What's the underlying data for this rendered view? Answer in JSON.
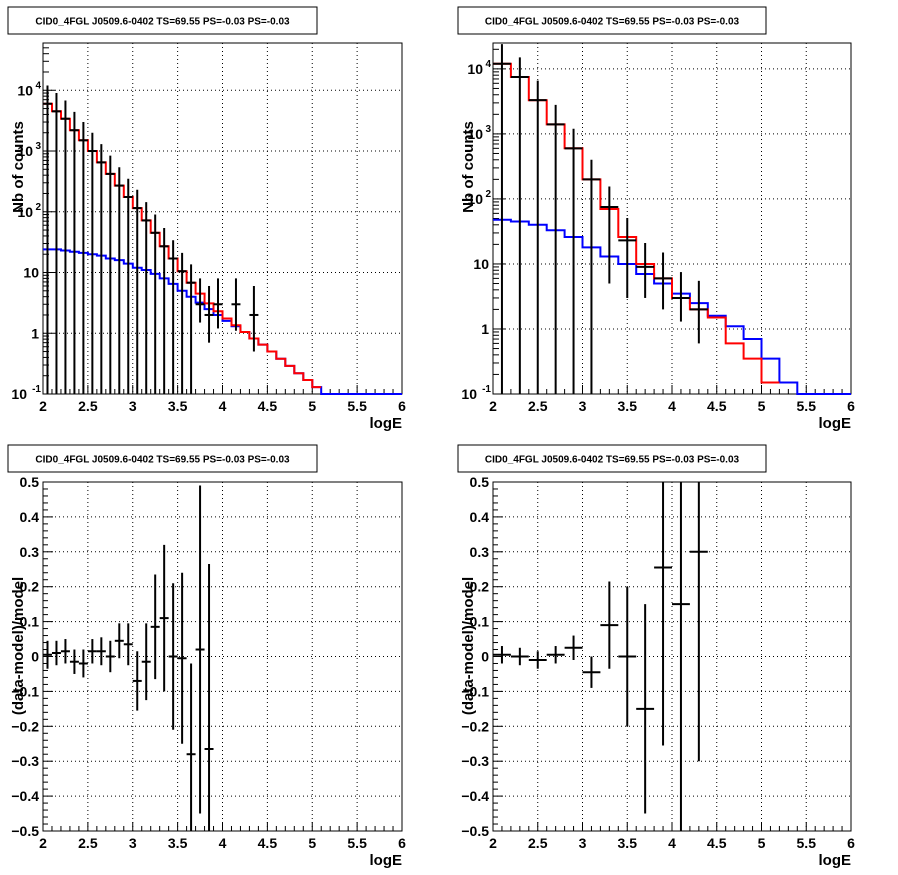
{
  "chart_data": [
    {
      "type": "histogram-line",
      "title": "CID0_4FGL J0509.6-0402 TS=69.55 PS=-0.03 PS=-0.03",
      "xlabel": "logE",
      "ylabel": "Nb of counts",
      "xlim": [
        2,
        6
      ],
      "ylim": [
        0.1,
        60000
      ],
      "yscale": "log",
      "grid": true,
      "xticks": [
        "2",
        "2.5",
        "3",
        "3.5",
        "4",
        "4.5",
        "5",
        "5.5",
        "6"
      ],
      "yticks": [
        {
          "base": "10",
          "exp": "-1"
        },
        {
          "base": "1",
          "exp": ""
        },
        {
          "base": "10",
          "exp": ""
        },
        {
          "base": "10",
          "exp": "2"
        },
        {
          "base": "10",
          "exp": "3"
        },
        {
          "base": "10",
          "exp": "4"
        }
      ],
      "series": [
        {
          "color": "#0000ff",
          "bin_width": 0.1,
          "x": [
            2.0,
            2.1,
            2.2,
            2.3,
            2.4,
            2.5,
            2.6,
            2.7,
            2.8,
            2.9,
            3.0,
            3.1,
            3.2,
            3.3,
            3.4,
            3.5,
            3.6,
            3.7,
            3.8,
            3.9,
            4.0,
            4.1,
            4.2,
            4.3,
            4.4,
            4.5,
            4.6,
            4.7,
            4.8,
            4.9,
            5.0,
            5.1,
            5.2,
            5.3,
            5.4,
            5.5,
            5.6,
            5.7,
            5.8,
            5.9
          ],
          "values": [
            24,
            24,
            23,
            22,
            21,
            20,
            19,
            17,
            16,
            14,
            12,
            11,
            9.5,
            8,
            6.5,
            5,
            4,
            3.2,
            2.5,
            2,
            1.6,
            1.3,
            1.05,
            0.82,
            0.65,
            0.5,
            0.38,
            0.29,
            0.22,
            0.17,
            0.13,
            0.1,
            0.1,
            0.1,
            0.1,
            0.1,
            0.1,
            0.1,
            0.1,
            0.1
          ]
        },
        {
          "color": "#ff0000",
          "bin_width": 0.1,
          "x": [
            2.0,
            2.1,
            2.2,
            2.3,
            2.4,
            2.5,
            2.6,
            2.7,
            2.8,
            2.9,
            3.0,
            3.1,
            3.2,
            3.3,
            3.4,
            3.5,
            3.6,
            3.7,
            3.8,
            3.9,
            4.0,
            4.1,
            4.2,
            4.3,
            4.4,
            4.5,
            4.6,
            4.7,
            4.8,
            4.9,
            5.0
          ],
          "values": [
            6000,
            4500,
            3400,
            2200,
            1500,
            1000,
            650,
            420,
            270,
            175,
            115,
            72,
            45,
            27,
            17,
            10.5,
            6.8,
            4.5,
            3.1,
            2.3,
            1.75,
            1.35,
            1.05,
            0.82,
            0.65,
            0.5,
            0.38,
            0.29,
            0.22,
            0.17,
            0.13
          ]
        }
      ],
      "points": {
        "color": "#000000",
        "x": [
          2.05,
          2.15,
          2.25,
          2.35,
          2.45,
          2.55,
          2.65,
          2.75,
          2.85,
          2.95,
          3.05,
          3.15,
          3.25,
          3.35,
          3.45,
          3.55,
          3.65,
          3.75,
          3.85,
          3.95,
          4.15,
          4.35
        ],
        "y": [
          6000,
          4500,
          3400,
          2200,
          1500,
          1000,
          650,
          420,
          270,
          175,
          115,
          72,
          45,
          27,
          17,
          10.5,
          6.8,
          3,
          2,
          3,
          3,
          2
        ],
        "yerr_low": [
          6000,
          4500,
          3400,
          2200,
          1500,
          1000,
          650,
          420,
          270,
          175,
          115,
          72,
          45,
          27,
          17,
          10.5,
          6.8,
          1.5,
          1.3,
          1.8,
          1.9,
          1.5
        ],
        "yerr_high": [
          6000,
          4500,
          3400,
          2200,
          1500,
          1000,
          650,
          420,
          270,
          175,
          115,
          72,
          45,
          27,
          17,
          10.5,
          6.8,
          5,
          4,
          5,
          5,
          4
        ],
        "xerr": 0.05
      }
    },
    {
      "type": "histogram-line",
      "title": "CID0_4FGL J0509.6-0402 TS=69.55 PS=-0.03 PS=-0.03",
      "xlabel": "logE",
      "ylabel": "Nb of counts",
      "xlim": [
        2,
        6
      ],
      "ylim": [
        0.1,
        25000
      ],
      "yscale": "log",
      "grid": true,
      "xticks": [
        "2",
        "2.5",
        "3",
        "3.5",
        "4",
        "4.5",
        "5",
        "5.5",
        "6"
      ],
      "yticks": [
        {
          "base": "10",
          "exp": "-1"
        },
        {
          "base": "1",
          "exp": ""
        },
        {
          "base": "10",
          "exp": ""
        },
        {
          "base": "10",
          "exp": "2"
        },
        {
          "base": "10",
          "exp": "3"
        },
        {
          "base": "10",
          "exp": "4"
        }
      ],
      "series": [
        {
          "color": "#0000ff",
          "bin_width": 0.2,
          "x": [
            2.0,
            2.2,
            2.4,
            2.6,
            2.8,
            3.0,
            3.2,
            3.4,
            3.6,
            3.8,
            4.0,
            4.2,
            4.4,
            4.6,
            4.8,
            5.0,
            5.2,
            5.4,
            5.6,
            5.8
          ],
          "values": [
            48,
            45,
            40,
            33,
            26,
            18,
            13,
            10,
            7,
            5,
            3.5,
            2.5,
            1.6,
            1.1,
            0.7,
            0.35,
            0.15,
            0.1,
            0.1,
            0.1
          ]
        },
        {
          "color": "#ff0000",
          "bin_width": 0.2,
          "x": [
            2.0,
            2.2,
            2.4,
            2.6,
            2.8,
            3.0,
            3.2,
            3.4,
            3.6,
            3.8,
            4.0,
            4.2,
            4.4,
            4.6,
            4.8,
            5.0
          ],
          "values": [
            12000,
            7500,
            3300,
            1400,
            600,
            200,
            70,
            26,
            10,
            6,
            3,
            2,
            1.5,
            0.6,
            0.35,
            0.15
          ]
        }
      ],
      "points": {
        "color": "#000000",
        "x": [
          2.1,
          2.3,
          2.5,
          2.7,
          2.9,
          3.1,
          3.3,
          3.5,
          3.7,
          3.9,
          4.1,
          4.3
        ],
        "y": [
          12000,
          7500,
          3300,
          1400,
          600,
          200,
          75,
          23,
          9,
          6,
          3,
          2
        ],
        "yerr_low": [
          12000,
          7500,
          3300,
          1400,
          600,
          200,
          70,
          20,
          6,
          4,
          1.7,
          1.4
        ],
        "yerr_high": [
          12000,
          7500,
          3300,
          1400,
          600,
          200,
          80,
          28,
          12,
          9,
          4.5,
          3.5
        ],
        "xerr": 0.1
      }
    },
    {
      "type": "scatter-errorbar",
      "title": "CID0_4FGL J0509.6-0402 TS=69.55 PS=-0.03 PS=-0.03",
      "xlabel": "logE",
      "ylabel": "(data-model)/model",
      "xlim": [
        2,
        6
      ],
      "ylim": [
        -0.5,
        0.5
      ],
      "grid": true,
      "xticks": [
        "2",
        "2.5",
        "3",
        "3.5",
        "4",
        "4.5",
        "5",
        "5.5",
        "6"
      ],
      "yticks": [
        "−0.5",
        "−0.4",
        "−0.3",
        "−0.2",
        "−0.1",
        "0",
        "0.1",
        "0.2",
        "0.3",
        "0.4",
        "0.5"
      ],
      "points": {
        "color": "#000000",
        "x": [
          2.05,
          2.15,
          2.25,
          2.35,
          2.45,
          2.55,
          2.65,
          2.75,
          2.85,
          2.95,
          3.05,
          3.15,
          3.25,
          3.35,
          3.45,
          3.55,
          3.65,
          3.75,
          3.85
        ],
        "y": [
          0.005,
          0.01,
          0.015,
          -0.015,
          -0.02,
          0.015,
          0.015,
          0.0,
          0.045,
          0.035,
          -0.07,
          -0.015,
          0.085,
          0.11,
          0.0,
          -0.005,
          -0.28,
          0.02,
          -0.265
        ],
        "yerr": [
          0.04,
          0.035,
          0.035,
          0.035,
          0.04,
          0.035,
          0.04,
          0.045,
          0.05,
          0.06,
          0.085,
          0.11,
          0.15,
          0.21,
          0.21,
          0.245,
          0.26,
          0.47,
          0.53
        ],
        "xerr": 0.05
      }
    },
    {
      "type": "scatter-errorbar",
      "title": "CID0_4FGL J0509.6-0402 TS=69.55 PS=-0.03 PS=-0.03",
      "xlabel": "logE",
      "ylabel": "(data-model)/model",
      "xlim": [
        2,
        6
      ],
      "ylim": [
        -0.5,
        0.5
      ],
      "grid": true,
      "xticks": [
        "2",
        "2.5",
        "3",
        "3.5",
        "4",
        "4.5",
        "5",
        "5.5",
        "6"
      ],
      "yticks": [
        "−0.5",
        "−0.4",
        "−0.3",
        "−0.2",
        "−0.1",
        "0",
        "0.1",
        "0.2",
        "0.3",
        "0.4",
        "0.5"
      ],
      "points": {
        "color": "#000000",
        "x": [
          2.1,
          2.3,
          2.5,
          2.7,
          2.9,
          3.1,
          3.3,
          3.5,
          3.7,
          3.9,
          4.1,
          4.3
        ],
        "y": [
          0.005,
          0.0,
          -0.01,
          0.005,
          0.025,
          -0.045,
          0.09,
          0.0,
          -0.15,
          0.255,
          0.15,
          0.3
        ],
        "yerr": [
          0.025,
          0.025,
          0.025,
          0.025,
          0.035,
          0.045,
          0.125,
          0.2,
          0.3,
          0.51,
          0.7,
          0.6
        ],
        "xerr": 0.1
      }
    }
  ]
}
